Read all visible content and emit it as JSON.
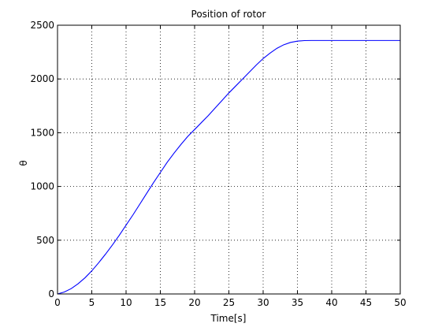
{
  "chart_data": {
    "type": "line",
    "title": "Position of rotor",
    "xlabel": "Time[s]",
    "ylabel": "θ",
    "xlim": [
      0,
      50
    ],
    "ylim": [
      0,
      2500
    ],
    "xticks": [
      "0",
      "5",
      "10",
      "15",
      "20",
      "25",
      "30",
      "35",
      "40",
      "45",
      "50"
    ],
    "yticks": [
      "0",
      "500",
      "1000",
      "1500",
      "2000",
      "2500"
    ],
    "grid": true,
    "series": [
      {
        "color": "#0000ff",
        "x": [
          0,
          1,
          2,
          3,
          4,
          5,
          6,
          7,
          8,
          9,
          10,
          11,
          12,
          13,
          14,
          15,
          16,
          17,
          18,
          19,
          20,
          21,
          22,
          23,
          24,
          25,
          26,
          27,
          28,
          29,
          30,
          31,
          32,
          33,
          34,
          35,
          36,
          37,
          38,
          39,
          40,
          42,
          44,
          46,
          48,
          50
        ],
        "y": [
          0,
          18,
          50,
          95,
          150,
          215,
          290,
          370,
          455,
          545,
          640,
          735,
          835,
          935,
          1035,
          1130,
          1225,
          1310,
          1390,
          1465,
          1530,
          1595,
          1660,
          1730,
          1800,
          1870,
          1935,
          2000,
          2065,
          2130,
          2190,
          2240,
          2285,
          2318,
          2340,
          2352,
          2357,
          2358,
          2358,
          2358,
          2358,
          2358,
          2358,
          2358,
          2358,
          2358
        ]
      }
    ]
  }
}
